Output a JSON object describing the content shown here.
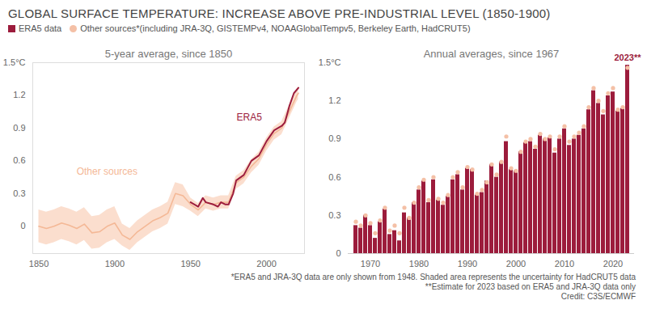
{
  "title": "GLOBAL SURFACE TEMPERATURE: INCREASE ABOVE PRE-INDUSTRIAL LEVEL (1850-1900)",
  "notes": [
    "*ERA5 and JRA-3Q data are only shown from 1948. Shaded area represents the uncertainty for HadCRUT5 data",
    "**Estimate for 2023 based on ERA5 and JRA-3Q data only",
    "Credit: C3S/ECMWF"
  ],
  "chart_data": [
    {
      "type": "line",
      "subtitle": "5-year average, since 1850",
      "xlim": [
        1846,
        2025
      ],
      "xticks": [
        1850,
        1900,
        1950,
        2000
      ],
      "ylim": [
        -0.25,
        1.5
      ],
      "yticks": [
        0,
        0.3,
        0.6,
        0.9,
        1.2,
        {
          "value": 1.5,
          "label": "1.5°C"
        }
      ],
      "grid": false,
      "series": [
        {
          "name": "Other sources",
          "color": "#f4b896",
          "x": [
            1850,
            1855,
            1860,
            1865,
            1870,
            1875,
            1880,
            1885,
            1890,
            1895,
            1900,
            1905,
            1910,
            1915,
            1920,
            1925,
            1930,
            1935,
            1940,
            1945,
            1950,
            1955,
            1960,
            1965,
            1970,
            1975,
            1980,
            1985,
            1990,
            1995,
            2000,
            2005,
            2010,
            2015,
            2020,
            2021
          ],
          "values": [
            0.0,
            -0.02,
            0.0,
            0.03,
            0.01,
            -0.02,
            0.02,
            -0.06,
            -0.05,
            0.0,
            0.03,
            -0.08,
            -0.12,
            -0.05,
            0.0,
            0.05,
            0.08,
            0.12,
            0.3,
            0.28,
            0.2,
            0.15,
            0.22,
            0.2,
            0.22,
            0.22,
            0.4,
            0.45,
            0.55,
            0.62,
            0.75,
            0.85,
            0.9,
            1.05,
            1.2,
            1.22
          ]
        },
        {
          "name": "ERA5",
          "color": "#9c1c3c",
          "x": [
            1950,
            1955,
            1958,
            1960,
            1965,
            1968,
            1970,
            1973,
            1975,
            1978,
            1980,
            1985,
            1990,
            1995,
            2000,
            2005,
            2010,
            2012,
            2015,
            2018,
            2021
          ],
          "values": [
            0.22,
            0.18,
            0.26,
            0.22,
            0.2,
            0.18,
            0.22,
            0.2,
            0.2,
            0.3,
            0.42,
            0.47,
            0.6,
            0.65,
            0.78,
            0.88,
            0.92,
            0.95,
            1.1,
            1.22,
            1.27
          ]
        }
      ],
      "uncertainty": {
        "color": "#fad6c2",
        "x": [
          1850,
          1855,
          1860,
          1865,
          1870,
          1875,
          1880,
          1885,
          1890,
          1895,
          1900,
          1905,
          1910,
          1915,
          1920,
          1925,
          1930,
          1935,
          1940,
          1945,
          1950,
          1955,
          1960,
          1965,
          1970,
          1975,
          1980,
          1985,
          1990,
          1995,
          2000,
          2005,
          2010,
          2015,
          2020,
          2021
        ],
        "lower": [
          -0.15,
          -0.17,
          -0.15,
          -0.12,
          -0.14,
          -0.17,
          -0.13,
          -0.21,
          -0.2,
          -0.15,
          -0.12,
          -0.18,
          -0.22,
          -0.15,
          -0.1,
          -0.05,
          -0.02,
          0.02,
          0.2,
          0.18,
          0.14,
          0.09,
          0.16,
          0.14,
          0.16,
          0.16,
          0.34,
          0.39,
          0.49,
          0.56,
          0.69,
          0.79,
          0.84,
          0.99,
          1.14,
          1.16
        ],
        "upper": [
          0.15,
          0.13,
          0.15,
          0.18,
          0.16,
          0.13,
          0.17,
          0.09,
          0.1,
          0.15,
          0.18,
          0.02,
          -0.02,
          0.05,
          0.1,
          0.15,
          0.18,
          0.22,
          0.4,
          0.38,
          0.26,
          0.21,
          0.28,
          0.26,
          0.28,
          0.28,
          0.46,
          0.51,
          0.61,
          0.68,
          0.81,
          0.91,
          0.96,
          1.11,
          1.26,
          1.28
        ]
      },
      "annotations": [
        {
          "series": "ERA5",
          "x": 1997,
          "y": 1.0
        },
        {
          "series": "Other sources",
          "x": 1915,
          "y": 0.5
        }
      ]
    },
    {
      "type": "bar",
      "subtitle": "Annual averages, since 1967",
      "legend": "top",
      "categories": [
        1967,
        1968,
        1969,
        1970,
        1971,
        1972,
        1973,
        1974,
        1975,
        1976,
        1977,
        1978,
        1979,
        1980,
        1981,
        1982,
        1983,
        1984,
        1985,
        1986,
        1987,
        1988,
        1989,
        1990,
        1991,
        1992,
        1993,
        1994,
        1995,
        1996,
        1997,
        1998,
        1999,
        2000,
        2001,
        2002,
        2003,
        2004,
        2005,
        2006,
        2007,
        2008,
        2009,
        2010,
        2011,
        2012,
        2013,
        2014,
        2015,
        2016,
        2017,
        2018,
        2019,
        2020,
        2021,
        2022,
        2023
      ],
      "xticks": [
        1970,
        1980,
        1990,
        2000,
        2010,
        2020
      ],
      "ylim": [
        0,
        1.5
      ],
      "yticks": [
        0,
        0.3,
        0.6,
        0.9,
        1.2,
        {
          "value": 1.5,
          "label": "1.5°C"
        }
      ],
      "grid": false,
      "series": [
        {
          "name": "ERA5 data",
          "type": "bar",
          "color": "#9c1c3c",
          "values": [
            0.22,
            0.2,
            0.3,
            0.22,
            0.12,
            0.25,
            0.35,
            0.15,
            0.18,
            0.1,
            0.32,
            0.28,
            0.4,
            0.5,
            0.57,
            0.4,
            0.58,
            0.42,
            0.38,
            0.45,
            0.58,
            0.62,
            0.5,
            0.67,
            0.66,
            0.46,
            0.48,
            0.57,
            0.7,
            0.6,
            0.72,
            0.88,
            0.66,
            0.65,
            0.8,
            0.87,
            0.88,
            0.82,
            0.93,
            0.9,
            0.91,
            0.79,
            0.9,
            0.98,
            0.85,
            0.9,
            0.93,
            0.98,
            1.13,
            1.28,
            1.18,
            1.09,
            1.24,
            1.27,
            1.12,
            1.14,
            1.48
          ]
        },
        {
          "name": "Other sources*(including JRA-3Q, GISTEMPv4, NOAAGlobalTempv5, Berkeley Earth, HadCRUT5)",
          "type": "scatter",
          "marker": "circle",
          "color": "#f4c0a6",
          "values": [
            0.25,
            0.22,
            0.3,
            0.24,
            0.16,
            0.26,
            0.36,
            0.18,
            0.22,
            0.16,
            0.36,
            0.28,
            0.4,
            0.52,
            0.58,
            0.42,
            0.6,
            0.43,
            0.4,
            0.46,
            0.6,
            0.64,
            0.52,
            0.68,
            0.66,
            0.47,
            0.5,
            0.56,
            0.7,
            0.62,
            0.72,
            0.92,
            0.67,
            0.65,
            0.8,
            0.88,
            0.9,
            0.84,
            0.94,
            0.9,
            0.92,
            0.82,
            0.92,
            1.0,
            0.88,
            0.92,
            0.95,
            1.0,
            1.15,
            1.3,
            1.2,
            1.12,
            1.26,
            1.3,
            1.13,
            1.15,
            1.46
          ]
        }
      ],
      "annotations": [
        {
          "text": "2023**",
          "x": 2023
        }
      ]
    }
  ]
}
